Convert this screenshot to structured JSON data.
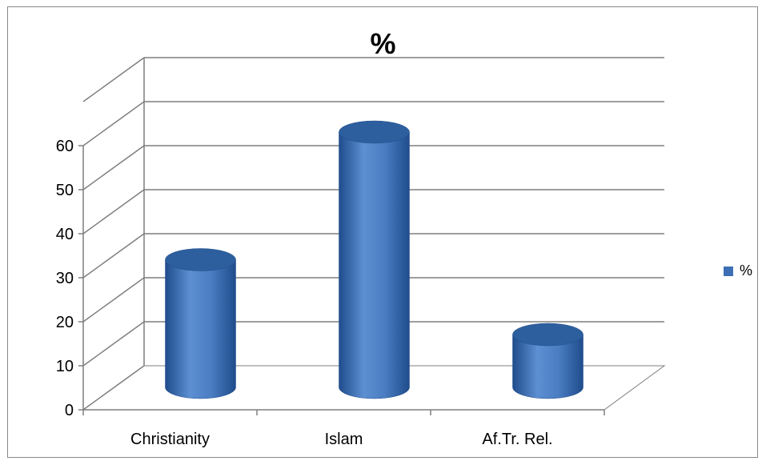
{
  "chart_data": {
    "type": "bar",
    "style": "3d-cylinder",
    "title": "%",
    "categories": [
      "Christianity",
      "Islam",
      "Af.Tr. Rel."
    ],
    "series": [
      {
        "name": "%",
        "values": [
          29,
          58,
          12
        ]
      }
    ],
    "ylim": [
      0,
      60
    ],
    "yticks": [
      0,
      10,
      20,
      30,
      40,
      50,
      60
    ],
    "grid": true,
    "legend": "right",
    "colors": {
      "bar": "#3d6fb5",
      "bar_dark": "#1f4c8c",
      "bar_light": "#6a98d8",
      "bar_top": "#2d5f9e",
      "grid": "#7f7f7f",
      "axis": "#7f7f7f"
    }
  }
}
